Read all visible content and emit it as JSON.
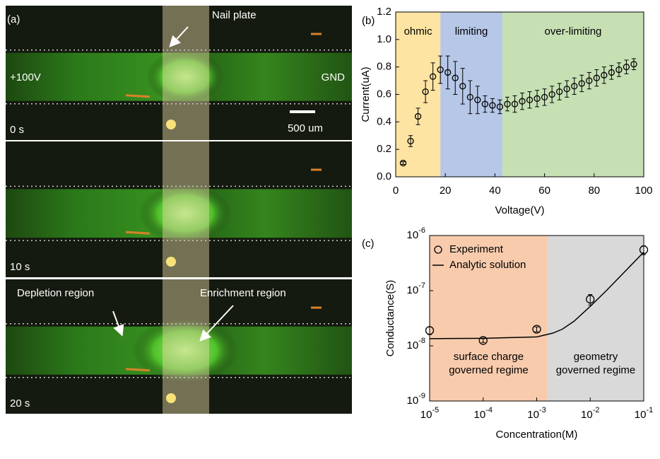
{
  "panel_a": {
    "label": "(a)",
    "nail_plate": "Nail plate",
    "left_voltage": "+100V",
    "right_voltage": "GND",
    "scale_bar": "500 um",
    "frames": [
      "0 s",
      "10 s",
      "20 s"
    ],
    "depletion": "Depletion region",
    "enrichment": "Enrichment region"
  },
  "chart_data": [
    {
      "type": "scatter",
      "label": "(b)",
      "x_label": "Voltage(V)",
      "y_label": "Current(uA)",
      "xlim": [
        0,
        100
      ],
      "ylim": [
        0,
        1.2
      ],
      "xticks": [
        0,
        20,
        40,
        60,
        80,
        100
      ],
      "yticks": [
        {
          "value": 0,
          "label": "0.0"
        },
        0.2,
        0.4,
        0.6,
        0.8,
        {
          "value": 1,
          "label": "1.0"
        },
        1.2
      ],
      "regions": [
        {
          "label": "ohmic",
          "range": [
            0,
            18
          ],
          "color": "#fde4a2"
        },
        {
          "label": "limiting",
          "range": [
            18,
            43
          ],
          "color": "#b6c7e8"
        },
        {
          "label": "over-limiting",
          "range": [
            43,
            100
          ],
          "color": "#c6e0b4"
        }
      ],
      "x": [
        3,
        6,
        9,
        12,
        15,
        18,
        21,
        24,
        27,
        30,
        33,
        36,
        39,
        42,
        45,
        48,
        51,
        54,
        57,
        60,
        63,
        66,
        69,
        72,
        75,
        78,
        81,
        84,
        87,
        90,
        93,
        96
      ],
      "values": [
        0.1,
        0.26,
        0.44,
        0.62,
        0.73,
        0.78,
        0.76,
        0.72,
        0.66,
        0.58,
        0.56,
        0.53,
        0.52,
        0.51,
        0.53,
        0.53,
        0.55,
        0.56,
        0.57,
        0.58,
        0.6,
        0.62,
        0.64,
        0.66,
        0.68,
        0.7,
        0.72,
        0.74,
        0.76,
        0.78,
        0.8,
        0.82
      ],
      "errors": [
        0.01,
        0.04,
        0.06,
        0.08,
        0.1,
        0.1,
        0.12,
        0.12,
        0.13,
        0.12,
        0.1,
        0.06,
        0.05,
        0.05,
        0.05,
        0.06,
        0.06,
        0.06,
        0.06,
        0.06,
        0.06,
        0.06,
        0.06,
        0.06,
        0.06,
        0.06,
        0.06,
        0.06,
        0.05,
        0.05,
        0.05,
        0.04
      ],
      "color": "#000000"
    },
    {
      "type": "scatter",
      "label": "(c)",
      "x_label": "Concentration(M)",
      "y_label": "Conductance(S)",
      "log_x": true,
      "log_y": true,
      "xlim": [
        1e-05,
        0.1
      ],
      "ylim": [
        1e-09,
        1e-06
      ],
      "xticks": [
        {
          "value": 1e-05,
          "label": "10",
          "exponent": "-5"
        },
        {
          "value": 0.0001,
          "label": "10",
          "exponent": "-4"
        },
        {
          "value": 0.001,
          "label": "10",
          "exponent": "-3"
        },
        {
          "value": 0.01,
          "label": "10",
          "exponent": "-2"
        },
        {
          "value": 0.1,
          "label": "10",
          "exponent": "-1"
        }
      ],
      "yticks": [
        {
          "value": 1e-09,
          "label": "10",
          "exponent": "-9"
        },
        {
          "value": 1e-08,
          "label": "10",
          "exponent": "-8"
        },
        {
          "value": 1e-07,
          "label": "10",
          "exponent": "-7"
        },
        {
          "value": 1e-06,
          "label": "10",
          "exponent": "-6"
        }
      ],
      "regions": [
        {
          "label": [
            "surface charge",
            "governed regime"
          ],
          "range": [
            1e-05,
            0.0016
          ],
          "color": "#f8cbad"
        },
        {
          "label": [
            "geometry",
            "governed regime"
          ],
          "range": [
            0.0016,
            0.1
          ],
          "color": "#d9d9d9"
        }
      ],
      "series": [
        {
          "name": "Experiment",
          "x": [
            1e-05,
            0.0001,
            0.001,
            0.01,
            0.1
          ],
          "values": [
            1.9e-08,
            1.25e-08,
            2e-08,
            7e-08,
            5.5e-07
          ],
          "errors": [
            3e-09,
            1e-09,
            2e-09,
            1.5e-08,
            1e-07
          ],
          "color": "#000000"
        },
        {
          "name": "Analytic solution",
          "x": [
            1e-05,
            0.0001,
            0.001,
            0.002,
            0.003,
            0.005,
            0.01,
            0.02,
            0.03,
            0.05,
            0.1
          ],
          "values": [
            1.35e-08,
            1.37e-08,
            1.45e-08,
            1.7e-08,
            2e-08,
            2.8e-08,
            5.2e-08,
            1e-07,
            1.5e-07,
            2.5e-07,
            5e-07
          ],
          "color": "#000000",
          "style": "line"
        }
      ]
    }
  ]
}
